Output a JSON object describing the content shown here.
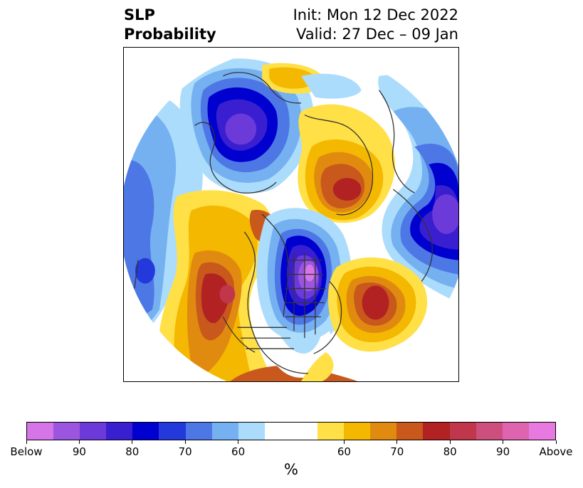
{
  "title": {
    "left_line1": "SLP",
    "left_line2": "Probability",
    "right_line1": "Init: Mon 12 Dec 2022",
    "right_line2": "Valid: 27 Dec – 09 Jan"
  },
  "colorbar": {
    "unit": "%",
    "below_colors": [
      "#d575e8",
      "#9c55de",
      "#6b3ad8",
      "#3a1fd0",
      "#0000cf",
      "#2339db",
      "#4e77e6",
      "#75b1f1",
      "#acdcfb"
    ],
    "neutral_color": "#ffffff",
    "above_colors": [
      "#ffe047",
      "#f4b800",
      "#e08b10",
      "#c9581c",
      "#b22222",
      "#c0364b",
      "#cc4f7e",
      "#de64b0",
      "#e879e1"
    ],
    "tick_labels": [
      "Below",
      "90",
      "80",
      "70",
      "60",
      "60",
      "70",
      "80",
      "90",
      "Above"
    ]
  },
  "map": {
    "projection": "north-polar-stereographic",
    "variable": "sea-level-pressure-probability",
    "coastline_color": "#333333"
  }
}
